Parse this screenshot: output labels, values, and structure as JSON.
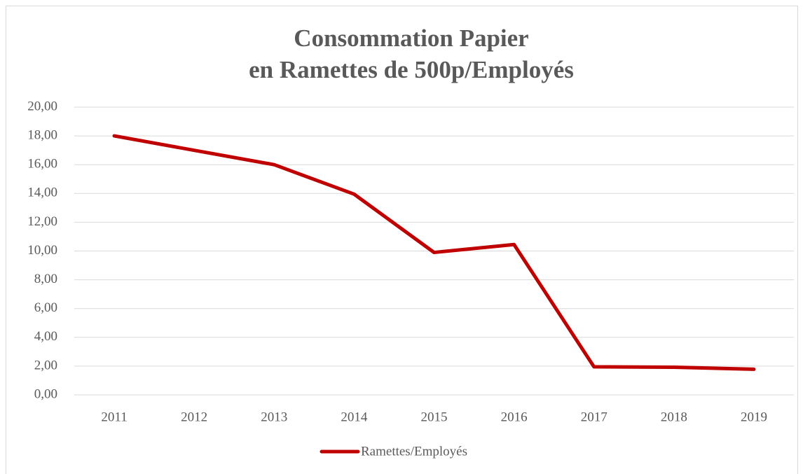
{
  "chart_data": {
    "type": "line",
    "title": [
      "Consommation Papier",
      "en Ramettes de 500p/Employés"
    ],
    "categories": [
      "2011",
      "2012",
      "2013",
      "2014",
      "2015",
      "2016",
      "2017",
      "2018",
      "2019"
    ],
    "series": [
      {
        "name": "Ramettes/Employés",
        "color": "#c00000",
        "values": [
          18.0,
          17.0,
          16.0,
          13.95,
          9.9,
          10.45,
          1.95,
          1.92,
          1.78
        ]
      }
    ],
    "ylim": [
      0,
      20
    ],
    "yticks": [
      {
        "value": 0,
        "label": "0,00"
      },
      {
        "value": 2,
        "label": "2,00"
      },
      {
        "value": 4,
        "label": "4,00"
      },
      {
        "value": 6,
        "label": "6,00"
      },
      {
        "value": 8,
        "label": "8,00"
      },
      {
        "value": 10,
        "label": "10,00"
      },
      {
        "value": 12,
        "label": "12,00"
      },
      {
        "value": 14,
        "label": "14,00"
      },
      {
        "value": 16,
        "label": "16,00"
      },
      {
        "value": 18,
        "label": "18,00"
      },
      {
        "value": 20,
        "label": "20,00"
      }
    ],
    "grid": true,
    "legend": "bottom"
  }
}
